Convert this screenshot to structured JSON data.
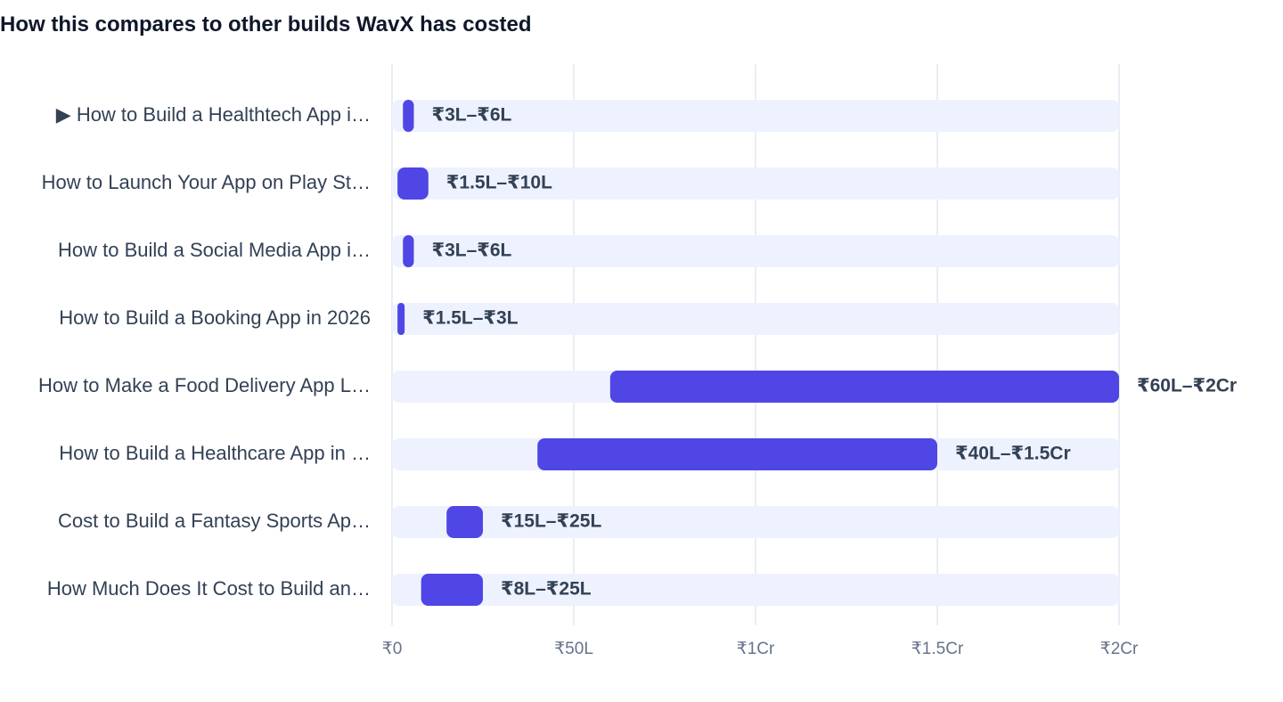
{
  "title": "How this compares to other builds WavX has costed",
  "chart_data": {
    "type": "bar",
    "orientation": "horizontal",
    "variant": "range",
    "title": "How this compares to other builds WavX has costed",
    "xlabel": "",
    "ylabel": "",
    "xlim": [
      0,
      200
    ],
    "units": "lakh INR",
    "grid": true,
    "ticks": [
      {
        "value": 0,
        "label": "₹0"
      },
      {
        "value": 50,
        "label": "₹50L"
      },
      {
        "value": 100,
        "label": "₹1Cr"
      },
      {
        "value": 150,
        "label": "₹1.5Cr"
      },
      {
        "value": 200,
        "label": "₹2Cr"
      }
    ],
    "categories": [
      {
        "label": "▶ How to Build a Healthtech App i…",
        "low": 3,
        "high": 6,
        "range_label": "₹3L–₹6L",
        "current": true
      },
      {
        "label": "How to Launch Your App on Play St…",
        "low": 1.5,
        "high": 10,
        "range_label": "₹1.5L–₹10L"
      },
      {
        "label": "How to Build a Social Media App i…",
        "low": 3,
        "high": 6,
        "range_label": "₹3L–₹6L"
      },
      {
        "label": "How to Build a Booking App in 2026",
        "low": 1.5,
        "high": 3,
        "range_label": "₹1.5L–₹3L"
      },
      {
        "label": "How to Make a Food Delivery App L…",
        "low": 60,
        "high": 200,
        "range_label": "₹60L–₹2Cr"
      },
      {
        "label": "How to Build a Healthcare App in …",
        "low": 40,
        "high": 150,
        "range_label": "₹40L–₹1.5Cr"
      },
      {
        "label": "Cost to Build a Fantasy Sports Ap…",
        "low": 15,
        "high": 25,
        "range_label": "₹15L–₹25L"
      },
      {
        "label": "How Much Does It Cost to Build an…",
        "low": 8,
        "high": 25,
        "range_label": "₹8L–₹25L"
      }
    ],
    "colors": {
      "bar": "#4f46e5",
      "track": "#eef2ff",
      "grid": "#e2e8f0",
      "label": "#334155",
      "tick": "#64748b"
    }
  }
}
